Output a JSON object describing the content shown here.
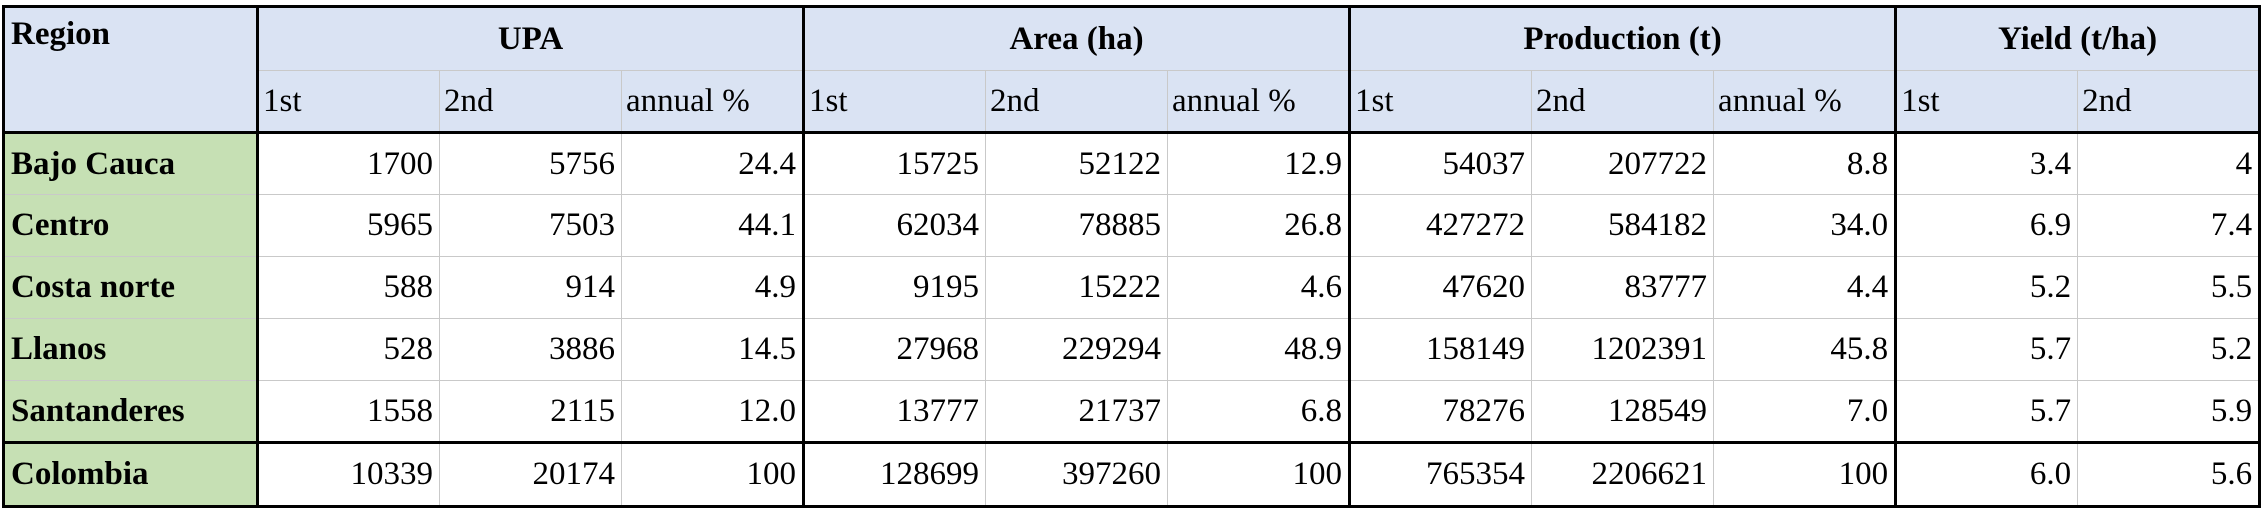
{
  "header": {
    "region": "Region",
    "groups": [
      "UPA",
      "Area (ha)",
      "Production (t)",
      "Yield (t/ha)"
    ],
    "sub": [
      "1st",
      "2nd",
      "annual %",
      "1st",
      "2nd",
      "annual %",
      "1st",
      "2nd",
      "annual %",
      "1st",
      "2nd"
    ]
  },
  "rows": [
    {
      "region": "Bajo Cauca",
      "cells": [
        "1700",
        "5756",
        "24.4",
        "15725",
        "52122",
        "12.9",
        "54037",
        "207722",
        "8.8",
        "3.4",
        "4"
      ]
    },
    {
      "region": "Centro",
      "cells": [
        "5965",
        "7503",
        "44.1",
        "62034",
        "78885",
        "26.8",
        "427272",
        "584182",
        "34.0",
        "6.9",
        "7.4"
      ]
    },
    {
      "region": "Costa norte",
      "cells": [
        "588",
        "914",
        "4.9",
        "9195",
        "15222",
        "4.6",
        "47620",
        "83777",
        "4.4",
        "5.2",
        "5.5"
      ]
    },
    {
      "region": "Llanos",
      "cells": [
        "528",
        "3886",
        "14.5",
        "27968",
        "229294",
        "48.9",
        "158149",
        "1202391",
        "45.8",
        "5.7",
        "5.2"
      ]
    },
    {
      "region": "Santanderes",
      "cells": [
        "1558",
        "2115",
        "12.0",
        "13777",
        "21737",
        "6.8",
        "78276",
        "128549",
        "7.0",
        "5.7",
        "5.9"
      ]
    }
  ],
  "total": {
    "region": "Colombia",
    "cells": [
      "10339",
      "20174",
      "100",
      "128699",
      "397260",
      "100",
      "765354",
      "2206621",
      "100",
      "6.0",
      "5.6"
    ]
  }
}
